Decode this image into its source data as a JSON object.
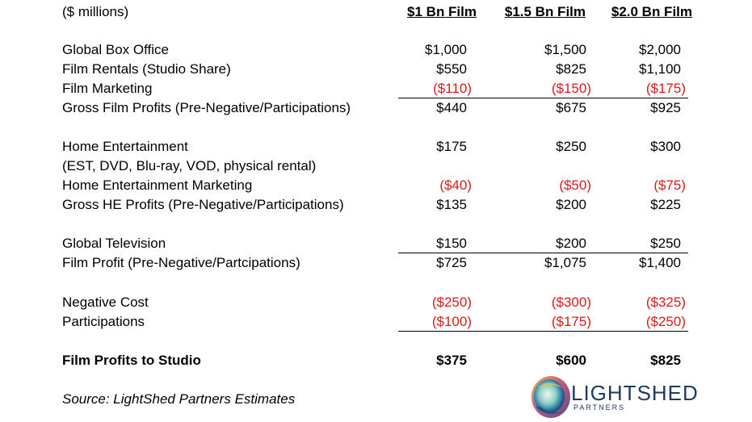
{
  "header": {
    "units": "($ millions)",
    "col1": "$1 Bn Film",
    "col2": "$1.5 Bn Film",
    "col3": "$2.0 Bn Film"
  },
  "rows": [
    {
      "label": "Global Box Office",
      "v1": "$1,000",
      "v2": "$1,500",
      "v3": "$2,000"
    },
    {
      "label": "Film Rentals (Studio Share)",
      "v1": "$550",
      "v2": "$825",
      "v3": "$1,100"
    },
    {
      "label": "Film Marketing",
      "v1": "($110)",
      "v2": "($150)",
      "v3": "($175)"
    },
    {
      "label": "Gross Film Profits (Pre-Negative/Participations)",
      "v1": "$440",
      "v2": "$675",
      "v3": "$925"
    },
    {
      "label": "Home Entertainment",
      "v1": "$175",
      "v2": "$250",
      "v3": "$300"
    },
    {
      "label": "(EST, DVD, Blu-ray, VOD, physical rental)"
    },
    {
      "label": "Home Entertainment Marketing",
      "v1": "($40)",
      "v2": "($50)",
      "v3": "($75)"
    },
    {
      "label": "Gross HE Profits (Pre-Negative/Participations)",
      "v1": "$135",
      "v2": "$200",
      "v3": "$225"
    },
    {
      "label": "Global Television",
      "v1": "$150",
      "v2": "$200",
      "v3": "$250"
    },
    {
      "label": "Film Profit (Pre-Negative/Partcipations)",
      "v1": "$725",
      "v2": "$1,075",
      "v3": "$1,400"
    },
    {
      "label": "Negative Cost",
      "v1": "($250)",
      "v2": "($300)",
      "v3": "($325)"
    },
    {
      "label": "Participations",
      "v1": "($100)",
      "v2": "($175)",
      "v3": "($250)"
    },
    {
      "label": "Film Profits to Studio",
      "v1": "$375",
      "v2": "$600",
      "v3": "$825"
    }
  ],
  "source": "Source: LightShed Partners Estimates",
  "logo": {
    "name": "LIGHTSHED",
    "sub": "PARTNERS",
    "icon": "lightshed-orb-logo"
  },
  "colors": {
    "negative": "#e01818",
    "text": "#000000",
    "logo_text": "#1f3b62"
  }
}
